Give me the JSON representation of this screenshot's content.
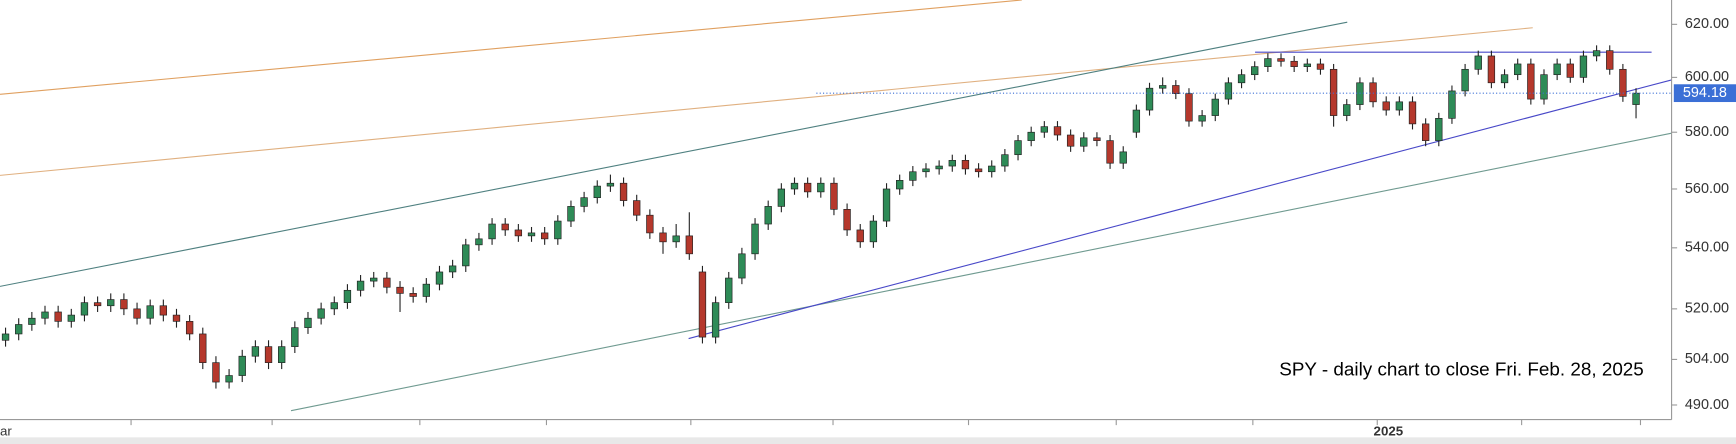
{
  "chart_data": {
    "type": "candlestick",
    "annotation": "SPY - daily chart to close Fri. Feb. 28, 2025",
    "x_labels": [
      "ar",
      "2025"
    ],
    "log_scale": true,
    "ylim": [
      485.6,
      629.4
    ],
    "yticks": [
      {
        "value": 620,
        "label": "620.00"
      },
      {
        "value": 600,
        "label": "600.00"
      },
      {
        "value": 580,
        "label": "580.00"
      },
      {
        "value": 560,
        "label": "560.00"
      },
      {
        "value": 540,
        "label": "540.00"
      },
      {
        "value": 520,
        "label": "520.00"
      },
      {
        "value": 504,
        "label": "504.00"
      },
      {
        "value": 490,
        "label": "490.00"
      }
    ],
    "last_price": 594.18,
    "up_color": "#2e8b57",
    "down_color": "#b5382c",
    "open": [
      510,
      512,
      515,
      517,
      519,
      516,
      518,
      522,
      521,
      523,
      520,
      517,
      521,
      518,
      516,
      512,
      503,
      497,
      499,
      505,
      508,
      503,
      508,
      514,
      517,
      520,
      522,
      526,
      529,
      530,
      527,
      525,
      524,
      528,
      532,
      534,
      541,
      543,
      548,
      546,
      544,
      545,
      543,
      549,
      554,
      557,
      561,
      562,
      556,
      551,
      545,
      542,
      544,
      532,
      511,
      522,
      530,
      538,
      548,
      554,
      560,
      562,
      559,
      562,
      553,
      546,
      542,
      549,
      560,
      563,
      566,
      567,
      568,
      570,
      567,
      566,
      568,
      572,
      577,
      580,
      582,
      579,
      575,
      578,
      577,
      569,
      580,
      588,
      596,
      597,
      594,
      584,
      586,
      592,
      598,
      601,
      604,
      607,
      606,
      604,
      605,
      603,
      586,
      590,
      598,
      591,
      588,
      591,
      583,
      577,
      585,
      595,
      603,
      608,
      598,
      601,
      605,
      592,
      601,
      605,
      600,
      608,
      610,
      603,
      590
    ],
    "high": [
      514,
      517,
      519,
      521,
      521,
      520,
      524,
      524,
      525,
      525,
      522,
      523,
      523,
      520,
      518,
      514,
      505,
      501,
      507,
      510,
      510,
      510,
      516,
      519,
      522,
      524,
      528,
      531,
      532,
      532,
      529,
      527,
      530,
      534,
      536,
      543,
      545,
      550,
      550,
      548,
      547,
      547,
      551,
      556,
      559,
      563,
      565,
      564,
      558,
      553,
      547,
      548,
      552,
      534,
      524,
      532,
      540,
      550,
      556,
      562,
      564,
      564,
      564,
      564,
      555,
      548,
      551,
      562,
      565,
      568,
      569,
      570,
      572,
      572,
      569,
      570,
      574,
      579,
      582,
      584,
      584,
      581,
      580,
      580,
      579,
      575,
      590,
      598,
      600,
      599,
      596,
      588,
      594,
      600,
      603,
      606,
      609,
      609,
      608,
      607,
      607,
      605,
      592,
      600,
      600,
      593,
      593,
      593,
      585,
      587,
      597,
      605,
      610,
      610,
      603,
      607,
      607,
      603,
      607,
      607,
      610,
      612,
      612,
      605,
      596
    ],
    "low": [
      508,
      510,
      513,
      515,
      514,
      514,
      516,
      519,
      519,
      518,
      515,
      515,
      516,
      514,
      510,
      501,
      495,
      495,
      497,
      503,
      501,
      501,
      506,
      512,
      515,
      518,
      520,
      524,
      527,
      525,
      519,
      522,
      522,
      526,
      530,
      532,
      539,
      541,
      544,
      542,
      542,
      541,
      541,
      547,
      552,
      555,
      559,
      554,
      549,
      543,
      538,
      540,
      536,
      509,
      509,
      520,
      528,
      536,
      546,
      552,
      558,
      557,
      557,
      551,
      544,
      540,
      540,
      547,
      558,
      561,
      564,
      565,
      566,
      565,
      564,
      564,
      566,
      570,
      575,
      578,
      577,
      573,
      573,
      575,
      567,
      567,
      578,
      586,
      594,
      592,
      582,
      582,
      584,
      590,
      596,
      599,
      602,
      604,
      602,
      602,
      601,
      582,
      584,
      588,
      589,
      586,
      586,
      581,
      575,
      575,
      583,
      593,
      601,
      596,
      596,
      599,
      590,
      590,
      599,
      598,
      598,
      606,
      601,
      591,
      585
    ],
    "close": [
      512,
      515,
      517,
      519,
      516,
      518,
      522,
      521,
      523,
      520,
      517,
      521,
      518,
      516,
      512,
      503,
      497,
      499,
      505,
      508,
      503,
      508,
      514,
      517,
      520,
      522,
      526,
      529,
      530,
      527,
      525,
      524,
      528,
      532,
      534,
      541,
      543,
      548,
      546,
      544,
      545,
      543,
      549,
      554,
      557,
      561,
      562,
      556,
      551,
      545,
      542,
      544,
      538,
      511,
      522,
      530,
      538,
      548,
      554,
      560,
      562,
      559,
      562,
      553,
      546,
      542,
      549,
      560,
      563,
      566,
      567,
      568,
      570,
      567,
      566,
      568,
      572,
      577,
      580,
      582,
      579,
      575,
      578,
      577,
      569,
      573,
      588,
      596,
      597,
      594,
      584,
      586,
      592,
      598,
      601,
      604,
      607,
      606,
      604,
      605,
      603,
      586,
      590,
      598,
      591,
      588,
      591,
      583,
      577,
      585,
      595,
      603,
      608,
      598,
      601,
      605,
      592,
      601,
      605,
      600,
      608,
      610,
      603,
      593,
      594.18
    ]
  }
}
